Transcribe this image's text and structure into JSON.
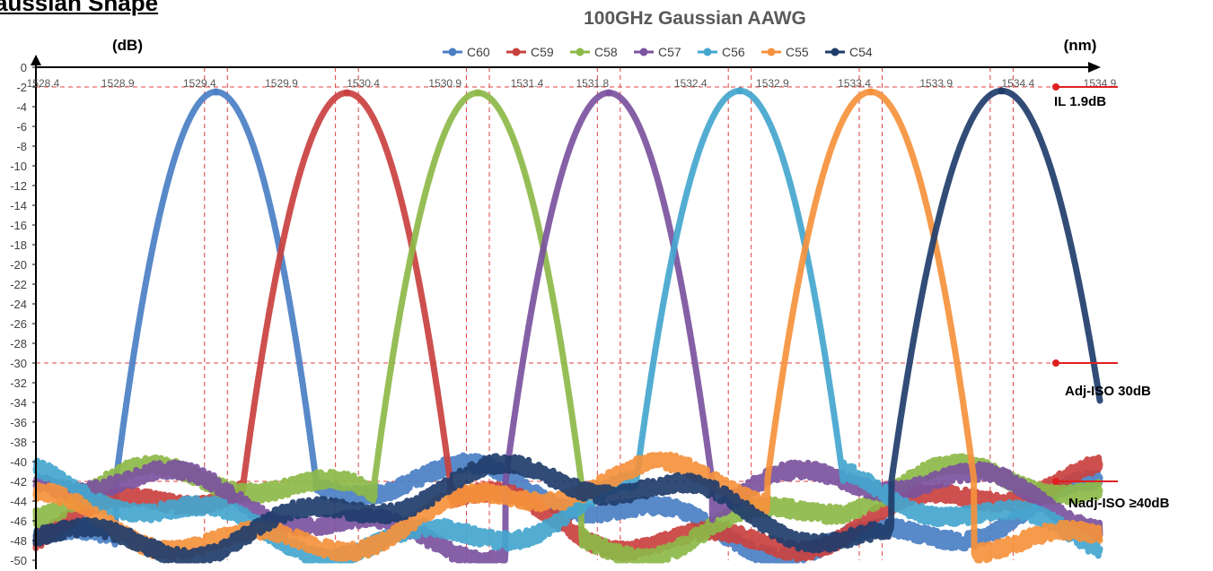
{
  "header": {
    "section_title": "aussian Shape"
  },
  "chart_data": {
    "type": "line",
    "title": "100GHz Gaussian AAWG",
    "ylabel": "(dB)",
    "xlabel": "(nm)",
    "ylim": [
      -50,
      0
    ],
    "xlim": [
      1528.4,
      1534.9
    ],
    "yticks": [
      "0",
      "-2",
      "-4",
      "-6",
      "-8",
      "-10",
      "-12",
      "-14",
      "-16",
      "-18",
      "-20",
      "-22",
      "-24",
      "-26",
      "-28",
      "-30",
      "-32",
      "-34",
      "-36",
      "-38",
      "-40",
      "-42",
      "-44",
      "-46",
      "-48",
      "-50"
    ],
    "xticks": [
      "1528.4",
      "1528.9",
      "1529.4",
      "1529.9",
      "1530.4",
      "1530.9",
      "1531.4",
      "1531.8",
      "1532.4",
      "1532.9",
      "1533.4",
      "1533.9",
      "1534.4",
      "1534.9"
    ],
    "legend_position": "top-center",
    "grid": false,
    "series": [
      {
        "name": "C60",
        "color": "#4A7FC4",
        "center": 1529.5,
        "peak": -2.5,
        "width": 0.3
      },
      {
        "name": "C59",
        "color": "#C9413F",
        "center": 1530.3,
        "peak": -2.6,
        "width": 0.31
      },
      {
        "name": "C58",
        "color": "#8DB848",
        "center": 1531.1,
        "peak": -2.6,
        "width": 0.31
      },
      {
        "name": "C57",
        "color": "#7B539E",
        "center": 1531.9,
        "peak": -2.6,
        "width": 0.31
      },
      {
        "name": "C56",
        "color": "#44A6CE",
        "center": 1532.7,
        "peak": -2.4,
        "width": 0.31
      },
      {
        "name": "C55",
        "color": "#F5913C",
        "center": 1533.5,
        "peak": -2.5,
        "width": 0.31
      },
      {
        "name": "C54",
        "color": "#1F3D6B",
        "center": 1534.3,
        "peak": -2.4,
        "width": 0.33
      }
    ],
    "reference_lines": [
      {
        "y": -2,
        "label": "IL  1.9dB"
      },
      {
        "y": -30,
        "label": "Adj-ISO 30dB"
      },
      {
        "y": -42,
        "label": "Nadj-ISO ≥40dB"
      }
    ]
  }
}
